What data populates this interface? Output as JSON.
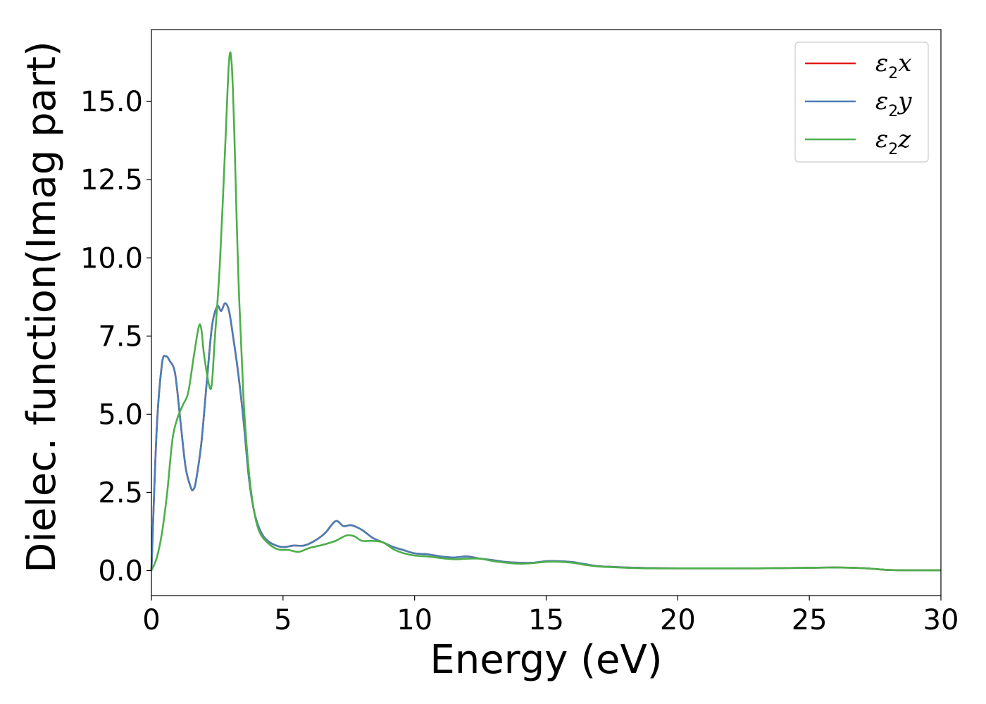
{
  "chart_data": {
    "type": "line",
    "xlabel": "Energy (eV)",
    "ylabel": "Dielec. function(Imag part)",
    "xlim": [
      0,
      30
    ],
    "ylim": [
      -0.8,
      17.3
    ],
    "xticks": [
      0,
      5,
      10,
      15,
      20,
      25,
      30
    ],
    "xtick_labels": [
      "0",
      "5",
      "10",
      "15",
      "20",
      "25",
      "30"
    ],
    "yticks": [
      0,
      2.5,
      5,
      7.5,
      10,
      12.5,
      15
    ],
    "ytick_labels": [
      "0.0",
      "2.5",
      "5.0",
      "7.5",
      "10.0",
      "12.5",
      "15.0"
    ],
    "grid": false,
    "legend_position": "top-right",
    "series": [
      {
        "name": "ε2x",
        "label_base": "ε",
        "label_sub": "2",
        "label_var": "x",
        "color": "#e41a1c",
        "x": [
          0,
          0.2,
          0.4,
          0.55,
          0.7,
          0.9,
          1.1,
          1.3,
          1.5,
          1.6,
          1.7,
          1.9,
          2.1,
          2.3,
          2.5,
          2.65,
          2.8,
          2.95,
          3.1,
          3.3,
          3.5,
          3.7,
          3.9,
          4.1,
          4.3,
          4.6,
          5.0,
          5.4,
          5.8,
          6.2,
          6.6,
          7.0,
          7.3,
          7.6,
          8.0,
          8.4,
          8.8,
          9.2,
          9.6,
          10.0,
          10.5,
          11.0,
          11.5,
          12.0,
          12.5,
          13.0,
          13.5,
          14.0,
          14.5,
          15.0,
          15.5,
          16.0,
          16.5,
          17.0,
          17.5,
          18.0,
          19.0,
          20.0,
          21.0,
          22.0,
          23.0,
          24.0,
          25.0,
          26.0,
          27.0,
          27.5,
          28.0,
          29.0,
          30.0
        ],
        "y": [
          0.0,
          4.5,
          6.6,
          6.85,
          6.7,
          6.3,
          4.8,
          3.3,
          2.65,
          2.6,
          2.9,
          4.1,
          6.0,
          7.8,
          8.45,
          8.3,
          8.55,
          8.3,
          7.5,
          6.3,
          4.8,
          3.0,
          1.9,
          1.35,
          1.05,
          0.85,
          0.75,
          0.8,
          0.8,
          0.95,
          1.2,
          1.58,
          1.42,
          1.45,
          1.3,
          1.05,
          0.9,
          0.75,
          0.65,
          0.55,
          0.52,
          0.45,
          0.42,
          0.45,
          0.38,
          0.33,
          0.27,
          0.25,
          0.25,
          0.3,
          0.3,
          0.27,
          0.2,
          0.14,
          0.12,
          0.1,
          0.08,
          0.07,
          0.07,
          0.07,
          0.07,
          0.08,
          0.09,
          0.1,
          0.08,
          0.05,
          0.02,
          0.01,
          0.01
        ]
      },
      {
        "name": "ε2y",
        "label_base": "ε",
        "label_sub": "2",
        "label_var": "y",
        "color": "#4a7fb5",
        "x": [
          0,
          0.2,
          0.4,
          0.55,
          0.7,
          0.9,
          1.1,
          1.3,
          1.5,
          1.6,
          1.7,
          1.9,
          2.1,
          2.3,
          2.5,
          2.65,
          2.8,
          2.95,
          3.1,
          3.3,
          3.5,
          3.7,
          3.9,
          4.1,
          4.3,
          4.6,
          5.0,
          5.4,
          5.8,
          6.2,
          6.6,
          7.0,
          7.3,
          7.6,
          8.0,
          8.4,
          8.8,
          9.2,
          9.6,
          10.0,
          10.5,
          11.0,
          11.5,
          12.0,
          12.5,
          13.0,
          13.5,
          14.0,
          14.5,
          15.0,
          15.5,
          16.0,
          16.5,
          17.0,
          17.5,
          18.0,
          19.0,
          20.0,
          21.0,
          22.0,
          23.0,
          24.0,
          25.0,
          26.0,
          27.0,
          27.5,
          28.0,
          29.0,
          30.0
        ],
        "y": [
          0.0,
          4.5,
          6.6,
          6.85,
          6.7,
          6.3,
          4.8,
          3.3,
          2.65,
          2.6,
          2.9,
          4.1,
          6.0,
          7.8,
          8.45,
          8.3,
          8.55,
          8.3,
          7.5,
          6.3,
          4.8,
          3.0,
          1.9,
          1.35,
          1.05,
          0.85,
          0.75,
          0.8,
          0.8,
          0.95,
          1.2,
          1.58,
          1.42,
          1.45,
          1.3,
          1.05,
          0.9,
          0.75,
          0.65,
          0.55,
          0.52,
          0.45,
          0.42,
          0.45,
          0.38,
          0.33,
          0.27,
          0.25,
          0.25,
          0.3,
          0.3,
          0.27,
          0.2,
          0.14,
          0.12,
          0.1,
          0.08,
          0.07,
          0.07,
          0.07,
          0.07,
          0.08,
          0.09,
          0.1,
          0.08,
          0.05,
          0.02,
          0.01,
          0.01
        ]
      },
      {
        "name": "ε2z",
        "label_base": "ε",
        "label_sub": "2",
        "label_var": "z",
        "color": "#4daf4a",
        "x": [
          0,
          0.2,
          0.4,
          0.6,
          0.8,
          1.0,
          1.2,
          1.4,
          1.6,
          1.8,
          1.9,
          2.0,
          2.2,
          2.3,
          2.4,
          2.6,
          2.8,
          2.95,
          3.05,
          3.15,
          3.3,
          3.5,
          3.7,
          3.9,
          4.1,
          4.4,
          4.8,
          5.2,
          5.6,
          6.0,
          6.5,
          7.0,
          7.4,
          7.7,
          8.0,
          8.4,
          8.8,
          9.2,
          9.6,
          10.0,
          10.5,
          11.0,
          11.5,
          12.0,
          12.5,
          13.0,
          13.5,
          14.0,
          14.5,
          15.0,
          15.5,
          16.0,
          16.5,
          17.0,
          17.5,
          18.0,
          19.0,
          20.0,
          21.0,
          22.0,
          23.0,
          24.0,
          25.0,
          26.0,
          27.0,
          27.5,
          28.0,
          29.0,
          30.0
        ],
        "y": [
          0.0,
          0.4,
          1.2,
          2.5,
          4.2,
          4.9,
          5.3,
          5.7,
          6.8,
          7.8,
          7.7,
          6.9,
          5.9,
          6.0,
          7.3,
          9.8,
          13.5,
          16.3,
          16.2,
          14.0,
          9.5,
          5.5,
          3.2,
          1.9,
          1.25,
          0.9,
          0.68,
          0.66,
          0.6,
          0.72,
          0.82,
          0.95,
          1.12,
          1.1,
          0.95,
          0.95,
          0.9,
          0.68,
          0.55,
          0.48,
          0.45,
          0.4,
          0.36,
          0.38,
          0.38,
          0.3,
          0.25,
          0.22,
          0.24,
          0.28,
          0.28,
          0.25,
          0.18,
          0.13,
          0.11,
          0.09,
          0.07,
          0.07,
          0.07,
          0.07,
          0.07,
          0.08,
          0.09,
          0.1,
          0.08,
          0.05,
          0.02,
          0.01,
          0.01
        ]
      }
    ]
  }
}
